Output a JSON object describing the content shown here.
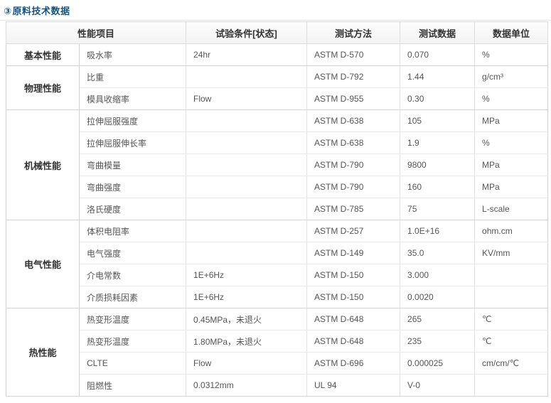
{
  "page": {
    "title_icon": "③",
    "title": "原料技术数据"
  },
  "table": {
    "headers": {
      "item": "性能项目",
      "condition": "试验条件[状态]",
      "method": "测试方法",
      "value": "测试数据",
      "unit": "数据单位"
    },
    "groups": [
      {
        "name": "基本性能",
        "rows": [
          {
            "item": "吸水率",
            "condition": "24hr",
            "method": "ASTM D-570",
            "value": "0.070",
            "unit": "%"
          }
        ]
      },
      {
        "name": "物理性能",
        "rows": [
          {
            "item": "比重",
            "condition": "",
            "method": "ASTM D-792",
            "value": "1.44",
            "unit": "g/cm³"
          },
          {
            "item": "模具收缩率",
            "condition": "Flow",
            "method": "ASTM D-955",
            "value": "0.30",
            "unit": "%"
          }
        ]
      },
      {
        "name": "机械性能",
        "rows": [
          {
            "item": "拉伸屈服强度",
            "condition": "",
            "method": "ASTM D-638",
            "value": "105",
            "unit": "MPa"
          },
          {
            "item": "拉伸屈服伸长率",
            "condition": "",
            "method": "ASTM D-638",
            "value": "1.9",
            "unit": "%"
          },
          {
            "item": "弯曲模量",
            "condition": "",
            "method": "ASTM D-790",
            "value": "9800",
            "unit": "MPa"
          },
          {
            "item": "弯曲强度",
            "condition": "",
            "method": "ASTM D-790",
            "value": "160",
            "unit": "MPa"
          },
          {
            "item": "洛氏硬度",
            "condition": "",
            "method": "ASTM D-785",
            "value": "75",
            "unit": "L-scale"
          }
        ]
      },
      {
        "name": "电气性能",
        "rows": [
          {
            "item": "体积电阻率",
            "condition": "",
            "method": "ASTM D-257",
            "value": "1.0E+16",
            "unit": "ohm.cm"
          },
          {
            "item": "电气强度",
            "condition": "",
            "method": "ASTM D-149",
            "value": "35.0",
            "unit": "KV/mm"
          },
          {
            "item": "介电常数",
            "condition": "1E+6Hz",
            "method": "ASTM D-150",
            "value": "3.000",
            "unit": ""
          },
          {
            "item": "介质损耗因素",
            "condition": "1E+6Hz",
            "method": "ASTM D-150",
            "value": "0.0020",
            "unit": ""
          }
        ]
      },
      {
        "name": "热性能",
        "rows": [
          {
            "item": "热变形温度",
            "condition": "0.45MPa，未退火",
            "method": "ASTM D-648",
            "value": "265",
            "unit": "℃"
          },
          {
            "item": "热变形温度",
            "condition": "1.80MPa，未退火",
            "method": "ASTM D-648",
            "value": "235",
            "unit": "℃"
          },
          {
            "item": "CLTE",
            "condition": "Flow",
            "method": "ASTM D-696",
            "value": "0.000025",
            "unit": "cm/cm/℃"
          },
          {
            "item": "阻燃性",
            "condition": "0.0312mm",
            "method": "UL 94",
            "value": "V-0",
            "unit": ""
          }
        ]
      }
    ]
  }
}
